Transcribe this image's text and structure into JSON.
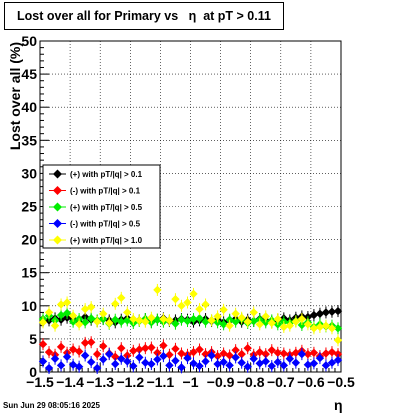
{
  "title": "Lost over all for Primary vs   η  at pT > 0.11",
  "footer_timestamp": "Sun Jun 29 08:05:16 2025",
  "chart_data": {
    "type": "scatter",
    "xlabel": "η",
    "ylabel": "Lost over all (%)",
    "xlim": [
      -1.5,
      -0.5
    ],
    "ylim": [
      0,
      50
    ],
    "xticks": [
      "−1.5",
      "−1.4",
      "−1.3",
      "−1.2",
      "−1.1",
      "−1",
      "−0.9",
      "−0.8",
      "−0.7",
      "−0.6",
      "−0.5"
    ],
    "yticks": [
      "0",
      "5",
      "10",
      "15",
      "20",
      "25",
      "30",
      "35",
      "40",
      "45",
      "50"
    ],
    "grid": true,
    "legend_placement": "left-middle",
    "series": [
      {
        "name": "(+) with pT/|q| > 0.1",
        "color": "#000000",
        "x": [
          -1.49,
          -1.47,
          -1.45,
          -1.43,
          -1.41,
          -1.39,
          -1.37,
          -1.35,
          -1.33,
          -1.31,
          -1.29,
          -1.27,
          -1.25,
          -1.23,
          -1.21,
          -1.19,
          -1.17,
          -1.15,
          -1.13,
          -1.11,
          -1.09,
          -1.07,
          -1.05,
          -1.03,
          -1.01,
          -0.99,
          -0.97,
          -0.95,
          -0.93,
          -0.91,
          -0.89,
          -0.87,
          -0.85,
          -0.83,
          -0.81,
          -0.79,
          -0.77,
          -0.75,
          -0.73,
          -0.71,
          -0.69,
          -0.67,
          -0.65,
          -0.63,
          -0.61,
          -0.59,
          -0.57,
          -0.55,
          -0.53,
          -0.51
        ],
        "y": [
          8.0,
          7.8,
          8.1,
          7.9,
          8.2,
          8.0,
          7.6,
          8.3,
          7.9,
          7.7,
          8.0,
          7.8,
          7.5,
          7.9,
          8.1,
          7.7,
          7.8,
          8.0,
          7.6,
          7.9,
          8.1,
          7.7,
          7.8,
          8.0,
          7.9,
          7.6,
          7.8,
          8.0,
          7.7,
          7.9,
          7.5,
          7.8,
          8.0,
          7.6,
          7.9,
          7.7,
          8.0,
          7.8,
          7.6,
          7.9,
          8.1,
          7.8,
          8.2,
          8.4,
          8.3,
          8.6,
          8.8,
          9.0,
          9.1,
          9.2
        ]
      },
      {
        "name": "(-) with pT/|q| > 0.1",
        "color": "#ff0000",
        "x": [
          -1.49,
          -1.47,
          -1.45,
          -1.43,
          -1.41,
          -1.39,
          -1.37,
          -1.35,
          -1.33,
          -1.31,
          -1.29,
          -1.27,
          -1.25,
          -1.23,
          -1.21,
          -1.19,
          -1.17,
          -1.15,
          -1.13,
          -1.11,
          -1.09,
          -1.07,
          -1.05,
          -1.03,
          -1.01,
          -0.99,
          -0.97,
          -0.95,
          -0.93,
          -0.91,
          -0.89,
          -0.87,
          -0.85,
          -0.83,
          -0.81,
          -0.79,
          -0.77,
          -0.75,
          -0.73,
          -0.71,
          -0.69,
          -0.67,
          -0.65,
          -0.63,
          -0.61,
          -0.59,
          -0.57,
          -0.55,
          -0.53,
          -0.51
        ],
        "y": [
          4.2,
          3.0,
          2.6,
          3.8,
          2.9,
          3.4,
          3.1,
          4.4,
          4.5,
          2.7,
          3.9,
          2.8,
          2.3,
          3.6,
          2.5,
          3.2,
          3.4,
          3.6,
          3.7,
          2.9,
          4.0,
          2.6,
          3.5,
          2.8,
          2.6,
          3.0,
          3.4,
          2.7,
          3.0,
          2.4,
          2.8,
          2.5,
          3.3,
          2.7,
          3.6,
          2.6,
          3.0,
          2.7,
          3.3,
          2.9,
          2.8,
          2.6,
          2.9,
          3.2,
          2.7,
          2.9,
          2.4,
          2.8,
          3.0,
          2.7
        ]
      },
      {
        "name": "(+) with pT/|q| > 0.5",
        "color": "#00ee00",
        "x": [
          -1.49,
          -1.47,
          -1.45,
          -1.43,
          -1.41,
          -1.39,
          -1.37,
          -1.35,
          -1.33,
          -1.31,
          -1.29,
          -1.27,
          -1.25,
          -1.23,
          -1.21,
          -1.19,
          -1.17,
          -1.15,
          -1.13,
          -1.11,
          -1.09,
          -1.07,
          -1.05,
          -1.03,
          -1.01,
          -0.99,
          -0.97,
          -0.95,
          -0.93,
          -0.91,
          -0.89,
          -0.87,
          -0.85,
          -0.83,
          -0.81,
          -0.79,
          -0.77,
          -0.75,
          -0.73,
          -0.71,
          -0.69,
          -0.67,
          -0.65,
          -0.63,
          -0.61,
          -0.59,
          -0.57,
          -0.55,
          -0.53,
          -0.51
        ],
        "y": [
          8.0,
          8.5,
          7.8,
          8.6,
          8.9,
          7.6,
          8.0,
          7.5,
          8.1,
          7.8,
          8.0,
          7.3,
          7.9,
          7.6,
          7.8,
          7.4,
          7.7,
          8.0,
          7.5,
          7.9,
          7.6,
          7.8,
          7.3,
          7.9,
          7.7,
          8.0,
          8.1,
          7.6,
          7.8,
          7.5,
          7.2,
          7.9,
          7.6,
          8.0,
          7.4,
          7.7,
          7.9,
          7.5,
          7.8,
          7.2,
          7.6,
          7.4,
          7.7,
          7.1,
          7.5,
          6.8,
          7.2,
          6.9,
          7.0,
          6.6
        ]
      },
      {
        "name": "(-) with pT/|q| > 0.5",
        "color": "#0000ff",
        "x": [
          -1.49,
          -1.47,
          -1.45,
          -1.43,
          -1.41,
          -1.39,
          -1.37,
          -1.35,
          -1.33,
          -1.31,
          -1.29,
          -1.27,
          -1.25,
          -1.23,
          -1.21,
          -1.19,
          -1.17,
          -1.15,
          -1.13,
          -1.11,
          -1.09,
          -1.07,
          -1.05,
          -1.03,
          -1.01,
          -0.99,
          -0.97,
          -0.95,
          -0.93,
          -0.91,
          -0.89,
          -0.87,
          -0.85,
          -0.83,
          -0.81,
          -0.79,
          -0.77,
          -0.75,
          -0.73,
          -0.71,
          -0.69,
          -0.67,
          -0.65,
          -0.63,
          -0.61,
          -0.59,
          -0.57,
          -0.55,
          -0.53,
          -0.51
        ],
        "y": [
          1.6,
          0.6,
          2.0,
          1.0,
          2.3,
          1.1,
          0.8,
          2.5,
          1.5,
          0.6,
          1.9,
          2.7,
          1.2,
          2.0,
          1.6,
          0.9,
          2.2,
          1.4,
          1.2,
          1.9,
          2.4,
          1.0,
          1.7,
          0.7,
          2.1,
          1.3,
          0.9,
          1.6,
          2.5,
          1.2,
          1.5,
          1.0,
          2.2,
          1.4,
          0.8,
          2.0,
          1.3,
          1.6,
          0.9,
          1.5,
          1.0,
          2.0,
          1.4,
          2.7,
          1.1,
          1.3,
          2.1,
          1.0,
          1.4,
          1.8
        ]
      },
      {
        "name": "(+) with pT/|q| > 1.0",
        "color": "#ffff00",
        "x": [
          -1.49,
          -1.47,
          -1.45,
          -1.43,
          -1.41,
          -1.39,
          -1.37,
          -1.35,
          -1.33,
          -1.31,
          -1.29,
          -1.27,
          -1.25,
          -1.23,
          -1.21,
          -1.19,
          -1.17,
          -1.15,
          -1.13,
          -1.11,
          -1.09,
          -1.07,
          -1.05,
          -1.03,
          -1.01,
          -0.99,
          -0.97,
          -0.95,
          -0.93,
          -0.91,
          -0.89,
          -0.87,
          -0.85,
          -0.83,
          -0.81,
          -0.79,
          -0.77,
          -0.75,
          -0.73,
          -0.71,
          -0.69,
          -0.67,
          -0.65,
          -0.63,
          -0.61,
          -0.59,
          -0.57,
          -0.55,
          -0.53,
          -0.51
        ],
        "y": [
          7.5,
          9.0,
          7.0,
          10.2,
          10.5,
          8.5,
          7.2,
          9.5,
          9.8,
          7.6,
          8.8,
          7.4,
          10.3,
          11.2,
          9.0,
          8.0,
          7.8,
          7.6,
          8.2,
          12.4,
          8.0,
          7.8,
          11.0,
          10.0,
          10.5,
          11.8,
          9.5,
          10.2,
          7.8,
          8.4,
          9.4,
          7.0,
          8.8,
          8.2,
          7.6,
          9.0,
          7.2,
          8.4,
          7.4,
          8.0,
          6.8,
          7.0,
          7.6,
          8.0,
          7.2,
          6.6,
          6.8,
          7.0,
          6.6,
          4.8
        ]
      }
    ]
  }
}
